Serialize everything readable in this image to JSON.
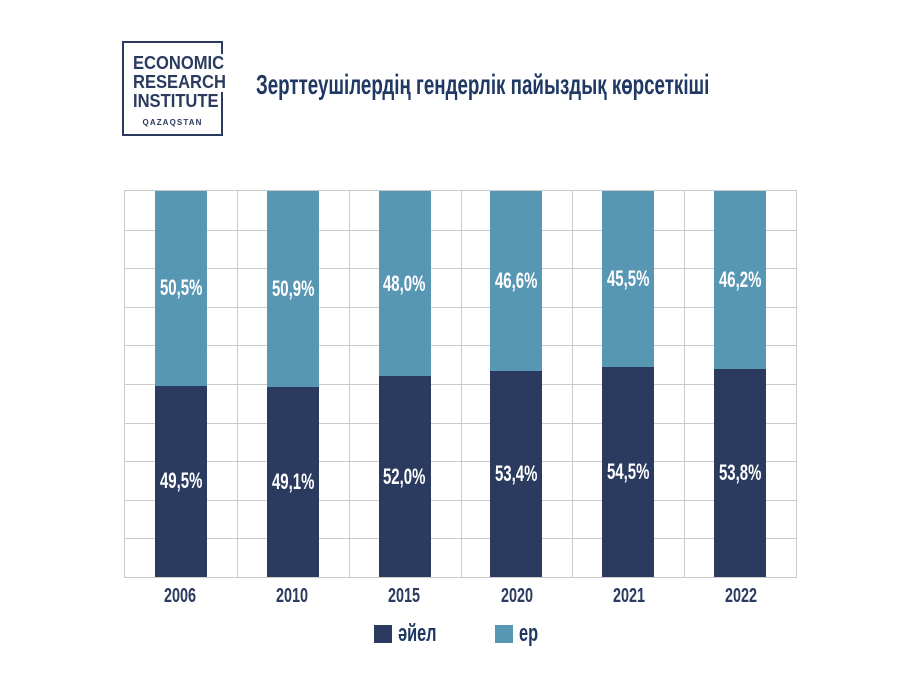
{
  "logo": {
    "lines": [
      "ECONOMIC",
      "RESEARCH",
      "INSTITUTE"
    ],
    "country": "QAZAQSTAN"
  },
  "title": "Зерттеушілердің гендерлік пайыздық көрсеткіші",
  "chart_data": {
    "type": "bar",
    "stacked": true,
    "title": "Зерттеушілердің гендерлік пайыздық көрсеткіші",
    "categories": [
      "2006",
      "2010",
      "2015",
      "2020",
      "2021",
      "2022"
    ],
    "series": [
      {
        "name": "әйел",
        "color": "#2b3b5f",
        "values": [
          49.5,
          49.1,
          52.0,
          53.4,
          54.5,
          53.8
        ],
        "labels": [
          "49,5%",
          "49,1%",
          "52,0%",
          "53,4%",
          "54,5%",
          "53,8%"
        ]
      },
      {
        "name": "ер",
        "color": "#5897b4",
        "values": [
          50.5,
          50.9,
          48.0,
          46.6,
          45.5,
          46.2
        ],
        "labels": [
          "50,5%",
          "50,9%",
          "48,0%",
          "46,6%",
          "45,5%",
          "46,2%"
        ]
      }
    ],
    "unit": "%",
    "ylim": [
      0,
      100
    ],
    "grid": {
      "on": true,
      "rows": 10,
      "color": "#cbcbcb"
    },
    "legend_position": "bottom",
    "value_label_color": "#ffffff",
    "bar_order_bottom_to_top": [
      "әйел",
      "ер"
    ]
  },
  "colors": {
    "text_navy": "#1f3864",
    "bar_dark": "#2b3b5f",
    "bar_light": "#5897b4",
    "grid": "#cbcbcb",
    "background": "#ffffff"
  }
}
